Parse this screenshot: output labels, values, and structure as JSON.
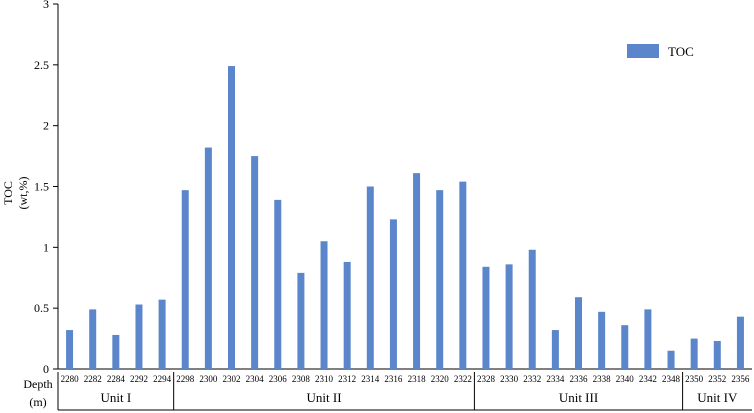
{
  "chart_data": {
    "type": "bar",
    "ylabel_line1": "TOC",
    "ylabel_line2": "(wt,%)",
    "xlabel_line1": "Depth",
    "xlabel_line2": "(m)",
    "ylim": [
      0,
      3
    ],
    "yticks": [
      "0",
      "0.5",
      "1",
      "1.5",
      "2",
      "2.5",
      "3"
    ],
    "legend": {
      "label": "TOC",
      "position": "top-right"
    },
    "bar_color": "#5b86cc",
    "categories": [
      "2280",
      "2282",
      "2284",
      "2292",
      "2294",
      "2298",
      "2300",
      "2302",
      "2304",
      "2306",
      "2308",
      "2310",
      "2312",
      "2314",
      "2316",
      "2318",
      "2320",
      "2322",
      "2328",
      "2330",
      "2332",
      "2334",
      "2336",
      "2338",
      "2340",
      "2342",
      "2348",
      "2350",
      "2352",
      "2356"
    ],
    "series": [
      {
        "name": "TOC",
        "values": [
          0.32,
          0.49,
          0.28,
          0.53,
          0.57,
          1.47,
          1.82,
          2.49,
          1.75,
          1.39,
          0.79,
          1.05,
          0.88,
          1.5,
          1.23,
          1.61,
          1.47,
          1.54,
          0.84,
          0.86,
          0.98,
          0.32,
          0.59,
          0.47,
          0.36,
          0.49,
          0.15,
          0.25,
          0.23,
          0.43
        ]
      }
    ],
    "units": [
      {
        "label": "Unit I",
        "from": 0,
        "to": 4
      },
      {
        "label": "Unit II",
        "from": 5,
        "to": 17
      },
      {
        "label": "Unit III",
        "from": 18,
        "to": 26
      },
      {
        "label": "Unit IV",
        "from": 27,
        "to": 29
      }
    ]
  }
}
